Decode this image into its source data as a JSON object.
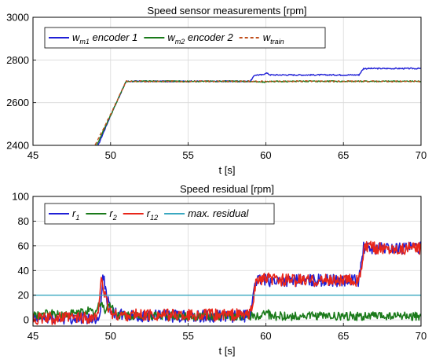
{
  "chart_data": [
    {
      "type": "line",
      "title": "Speed sensor measurements  [rpm]",
      "xlabel": "t [s]",
      "ylabel": "",
      "xlim": [
        45,
        70
      ],
      "ylim": [
        2400,
        3000
      ],
      "xticks": [
        "45",
        "50",
        "55",
        "60",
        "65",
        "70"
      ],
      "yticks": [
        "2400",
        "2600",
        "2800",
        "3000"
      ],
      "grid": true,
      "legend_position": "top",
      "series": [
        {
          "name": "encoder 1",
          "label_main": "w",
          "label_sub": "m1",
          "label_suffix": " encoder 1",
          "color": "#1f1fd6",
          "style": "solid",
          "x": [
            49.2,
            50.0,
            51.0,
            55.0,
            59.0,
            59.3,
            59.8,
            60.0,
            60.3,
            62.0,
            66.0,
            66.3,
            70.0
          ],
          "y": [
            2400,
            2540,
            2700,
            2700,
            2700,
            2730,
            2730,
            2740,
            2730,
            2730,
            2730,
            2760,
            2760
          ]
        },
        {
          "name": "encoder 2",
          "label_main": "w",
          "label_sub": "m2",
          "label_suffix": " encoder 2",
          "color": "#1a7a1a",
          "style": "solid",
          "x": [
            49.1,
            50.0,
            51.0,
            55.0,
            59.0,
            60.0,
            60.2,
            62.0,
            66.0,
            70.0
          ],
          "y": [
            2400,
            2540,
            2700,
            2700,
            2700,
            2695,
            2700,
            2700,
            2700,
            2700
          ]
        },
        {
          "name": "train",
          "label_main": "w",
          "label_sub": "train",
          "label_suffix": "",
          "color": "#c0501e",
          "style": "dashed",
          "x": [
            49.0,
            50.0,
            51.0,
            55.0,
            60.0,
            66.0,
            70.0
          ],
          "y": [
            2400,
            2545,
            2700,
            2700,
            2700,
            2700,
            2700
          ]
        }
      ]
    },
    {
      "type": "line",
      "title": "Speed residual [rpm]",
      "xlabel": "t [s]",
      "ylabel": "",
      "xlim": [
        45,
        70
      ],
      "ylim": [
        -5,
        100
      ],
      "xticks": [
        "45",
        "50",
        "55",
        "60",
        "65",
        "70"
      ],
      "yticks": [
        "0",
        "20",
        "40",
        "60",
        "80",
        "100"
      ],
      "grid": true,
      "legend_position": "top",
      "series": [
        {
          "name": "r1",
          "label_main": "r",
          "label_sub": "1",
          "label_suffix": "",
          "color": "#1f1fd6",
          "style": "solid",
          "x": [
            45.0,
            49.3,
            49.5,
            49.8,
            50.2,
            51.0,
            59.0,
            59.3,
            66.0,
            66.3,
            70.0
          ],
          "y": [
            1,
            2,
            38,
            15,
            5,
            3,
            3,
            32,
            32,
            58,
            58
          ]
        },
        {
          "name": "r2",
          "label_main": "r",
          "label_sub": "2",
          "label_suffix": "",
          "color": "#1a7a1a",
          "style": "solid",
          "x": [
            45.0,
            46.0,
            47.0,
            48.0,
            48.5,
            49.0,
            49.4,
            49.6,
            50.0,
            50.3,
            51.0,
            55.0,
            59.5,
            60.0,
            60.3,
            65.0,
            70.0
          ],
          "y": [
            3,
            5,
            4,
            6,
            8,
            5,
            15,
            8,
            12,
            5,
            3,
            3,
            3,
            7,
            3,
            3,
            3
          ]
        },
        {
          "name": "r12",
          "label_main": "r",
          "label_sub": "12",
          "label_suffix": "",
          "color": "#e8261a",
          "style": "solid",
          "x": [
            45.0,
            49.2,
            49.4,
            49.6,
            49.9,
            50.2,
            51.0,
            55.0,
            59.0,
            59.4,
            60.0,
            62.0,
            66.0,
            66.4,
            68.0,
            70.0
          ],
          "y": [
            1,
            2,
            39,
            20,
            8,
            4,
            4,
            4,
            4,
            32,
            33,
            32,
            32,
            59,
            58,
            58
          ]
        },
        {
          "name": "max. residual",
          "label_main": "max. residual",
          "label_sub": "",
          "label_suffix": "",
          "color": "#3aa8c1",
          "style": "solid",
          "x": [
            45,
            70
          ],
          "y": [
            20,
            20
          ]
        }
      ]
    }
  ]
}
